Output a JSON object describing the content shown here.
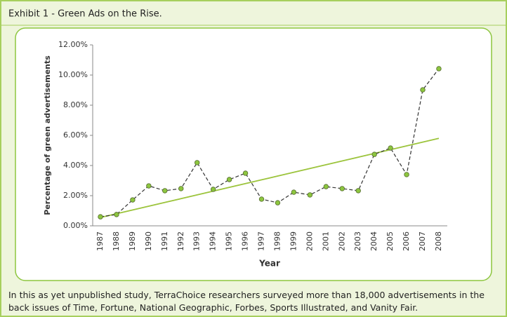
{
  "title": "Exhibit 1 - Green Ads on the Rise.",
  "caption": "In this as yet unpublished study, TerraChoice researchers surveyed more than 18,000 advertisements in the back issues of Time, Fortune,  National Geographic, Forbes, Sports Illustrated, and Vanity Fair.",
  "chart_data": {
    "type": "line",
    "xlabel": "Year",
    "ylabel": "Percentage of green advertisements",
    "categories": [
      "1987",
      "1988",
      "1989",
      "1990",
      "1991",
      "1992",
      "1993",
      "1994",
      "1995",
      "1996",
      "1997",
      "1998",
      "1999",
      "2000",
      "2001",
      "2002",
      "2003",
      "2004",
      "2005",
      "2006",
      "2007",
      "2008"
    ],
    "series": [
      {
        "color": "#333333",
        "marker_color": "#8dc63f",
        "dashed": true,
        "markers": true,
        "values": [
          0.6,
          0.75,
          1.72,
          2.65,
          2.33,
          2.47,
          4.19,
          2.42,
          3.07,
          3.49,
          1.77,
          1.53,
          2.23,
          2.05,
          2.6,
          2.47,
          2.33,
          4.74,
          5.16,
          3.4,
          9.02,
          10.42
        ]
      },
      {
        "color": "#9cc43c",
        "dashed": false,
        "markers": false,
        "values": [
          0.55,
          0.8,
          1.05,
          1.3,
          1.55,
          1.8,
          2.05,
          2.3,
          2.55,
          2.8,
          3.05,
          3.3,
          3.55,
          3.8,
          4.05,
          4.3,
          4.55,
          4.8,
          5.05,
          5.3,
          5.55,
          5.8
        ]
      }
    ],
    "ylim": [
      0,
      12
    ],
    "yticks": [
      {
        "value": 0,
        "label": "0.00%"
      },
      {
        "value": 2,
        "label": "2.00%"
      },
      {
        "value": 4,
        "label": "4.00%"
      },
      {
        "value": 6,
        "label": "6.00%"
      },
      {
        "value": 8,
        "label": "8.00%"
      },
      {
        "value": 10,
        "label": "10.00%"
      },
      {
        "value": 12,
        "label": "12.00%"
      }
    ],
    "grid": false
  }
}
